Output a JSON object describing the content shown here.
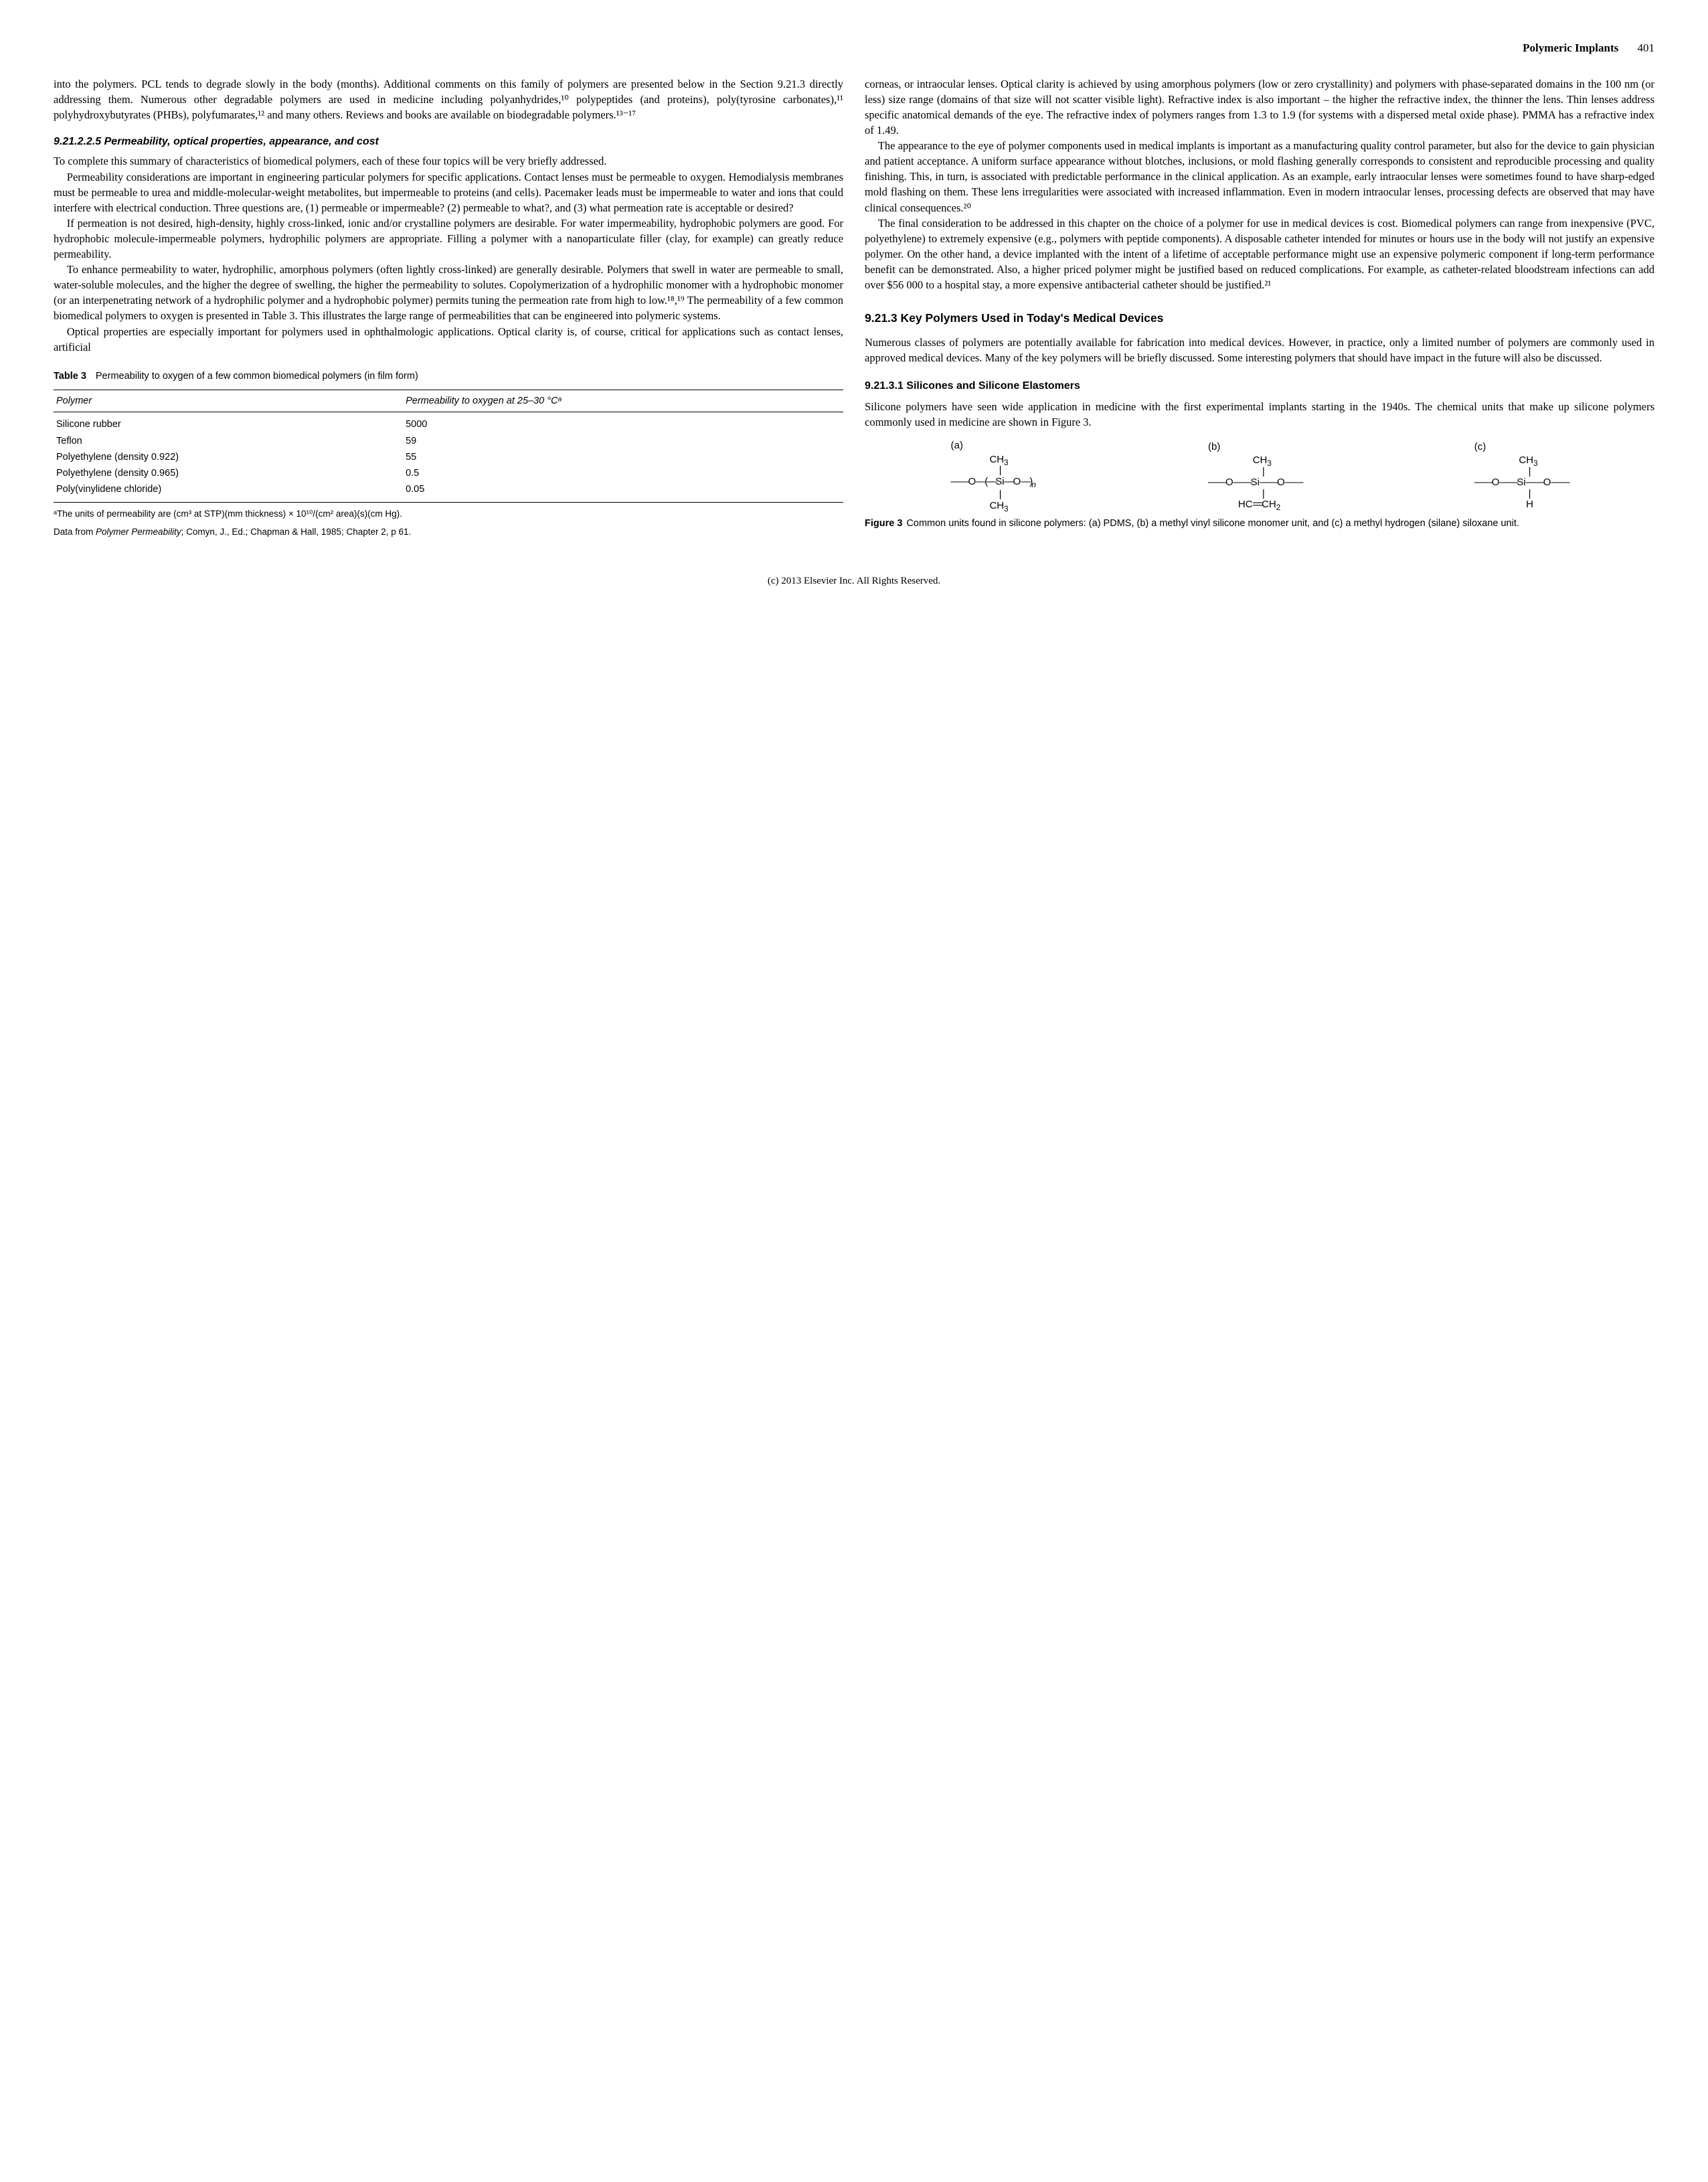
{
  "header": {
    "section_title": "Polymeric Implants",
    "page_number": "401"
  },
  "body": {
    "intro_para": "into the polymers. PCL tends to degrade slowly in the body (months). Additional comments on this family of polymers are presented below in the Section 9.21.3 directly addressing them. Numerous other degradable polymers are used in medicine including polyanhydrides,¹⁰ polypeptides (and proteins), poly(tyrosine carbonates),¹¹ polyhydroxybutyrates (PHBs), polyfumarates,¹² and many others. Reviews and books are available on biodegradable polymers.¹³⁻¹⁷",
    "heading_92125": "9.21.2.2.5   Permeability, optical properties, appearance, and cost",
    "para_92125_1": "To complete this summary of characteristics of biomedical polymers, each of these four topics will be very briefly addressed.",
    "para_92125_2": "Permeability considerations are important in engineering particular polymers for specific applications. Contact lenses must be permeable to oxygen. Hemodialysis membranes must be permeable to urea and middle-molecular-weight metabolites, but impermeable to proteins (and cells). Pacemaker leads must be impermeable to water and ions that could interfere with electrical conduction. Three questions are, (1) permeable or impermeable? (2) permeable to what?, and (3) what permeation rate is acceptable or desired?",
    "para_92125_3": "If permeation is not desired, high-density, highly cross-linked, ionic and/or crystalline polymers are desirable. For water impermeability, hydrophobic polymers are good. For hydrophobic molecule-impermeable polymers, hydrophilic polymers are appropriate. Filling a polymer with a nanoparticulate filler (clay, for example) can greatly reduce permeability.",
    "para_92125_4": "To enhance permeability to water, hydrophilic, amorphous polymers (often lightly cross-linked) are generally desirable. Polymers that swell in water are permeable to small, water-soluble molecules, and the higher the degree of swelling, the higher the permeability to solutes. Copolymerization of a hydrophilic monomer with a hydrophobic monomer (or an interpenetrating network of a hydrophilic polymer and a hydrophobic polymer) permits tuning the permeation rate from high to low.¹⁸,¹⁹ The permeability of a few common biomedical polymers to oxygen is presented in Table 3. This illustrates the large range of permeabilities that can be engineered into polymeric systems.",
    "para_92125_5": "Optical properties are especially important for polymers used in ophthalmologic applications. Optical clarity is, of course, critical for applications such as contact lenses, artificial",
    "para_col2_1": "corneas, or intraocular lenses. Optical clarity is achieved by using amorphous polymers (low or zero crystallinity) and polymers with phase-separated domains in the 100 nm (or less) size range (domains of that size will not scatter visible light). Refractive index is also important – the higher the refractive index, the thinner the lens. Thin lenses address specific anatomical demands of the eye. The refractive index of polymers ranges from 1.3 to 1.9 (for systems with a dispersed metal oxide phase). PMMA has a refractive index of 1.49.",
    "para_col2_2": "The appearance to the eye of polymer components used in medical implants is important as a manufacturing quality control parameter, but also for the device to gain physician and patient acceptance. A uniform surface appearance without blotches, inclusions, or mold flashing generally corresponds to consistent and reproducible processing and quality finishing. This, in turn, is associated with predictable performance in the clinical application. As an example, early intraocular lenses were sometimes found to have sharp-edged mold flashing on them. These lens irregularities were associated with increased inflammation. Even in modern intraocular lenses, processing defects are observed that may have clinical consequences.²⁰",
    "para_col2_3": "The final consideration to be addressed in this chapter on the choice of a polymer for use in medical devices is cost. Biomedical polymers can range from inexpensive (PVC, polyethylene) to extremely expensive (e.g., polymers with peptide components). A disposable catheter intended for minutes or hours use in the body will not justify an expensive polymer. On the other hand, a device implanted with the intent of a lifetime of acceptable performance might use an expensive polymeric component if long-term performance benefit can be demonstrated. Also, a higher priced polymer might be justified based on reduced complications. For example, as catheter-related bloodstream infections can add over $56 000 to a hospital stay, a more expensive antibacterial catheter should be justified.²¹",
    "heading_9213": "9.21.3   Key Polymers Used in Today's Medical Devices",
    "para_9213_1": "Numerous classes of polymers are potentially available for fabrication into medical devices. However, in practice, only a limited number of polymers are commonly used in approved medical devices. Many of the key polymers will be briefly discussed. Some interesting polymers that should have impact in the future will also be discussed.",
    "heading_92131": "9.21.3.1   Silicones and Silicone Elastomers",
    "para_92131_1": "Silicone polymers have seen wide application in medicine with the first experimental implants starting in the 1940s. The chemical units that make up silicone polymers commonly used in medicine are shown in Figure 3."
  },
  "table3": {
    "label": "Table 3",
    "caption": "Permeability to oxygen of a few common biomedical polymers (in film form)",
    "columns": [
      "Polymer",
      "Permeability to oxygen at 25–30 °Cᵃ"
    ],
    "rows": [
      [
        "Silicone rubber",
        "5000"
      ],
      [
        "Teflon",
        "59"
      ],
      [
        "Polyethylene (density 0.922)",
        "55"
      ],
      [
        "Polyethylene (density 0.965)",
        "0.5"
      ],
      [
        "Poly(vinylidene chloride)",
        "0.05"
      ]
    ],
    "footnote_a": "ᵃThe units of permeability are (cm³ at STP)(mm thickness) × 10¹⁰/(cm² area)(s)(cm Hg).",
    "footnote_source_prefix": "Data from ",
    "footnote_source_title": "Polymer Permeability",
    "footnote_source_rest": "; Comyn, J., Ed.; Chapman & Hall, 1985; Chapter 2, p 61."
  },
  "figure3": {
    "label": "Figure 3",
    "caption": "Common units found in silicone polymers: (a) PDMS, (b) a methyl vinyl silicone monomer unit, and (c) a methyl hydrogen (silane) siloxane unit.",
    "units": {
      "a": {
        "label": "(a)"
      },
      "b": {
        "label": "(b)"
      },
      "c": {
        "label": "(c)"
      }
    }
  },
  "footer": {
    "copyright": "(c) 2013 Elsevier Inc. All Rights Reserved."
  }
}
